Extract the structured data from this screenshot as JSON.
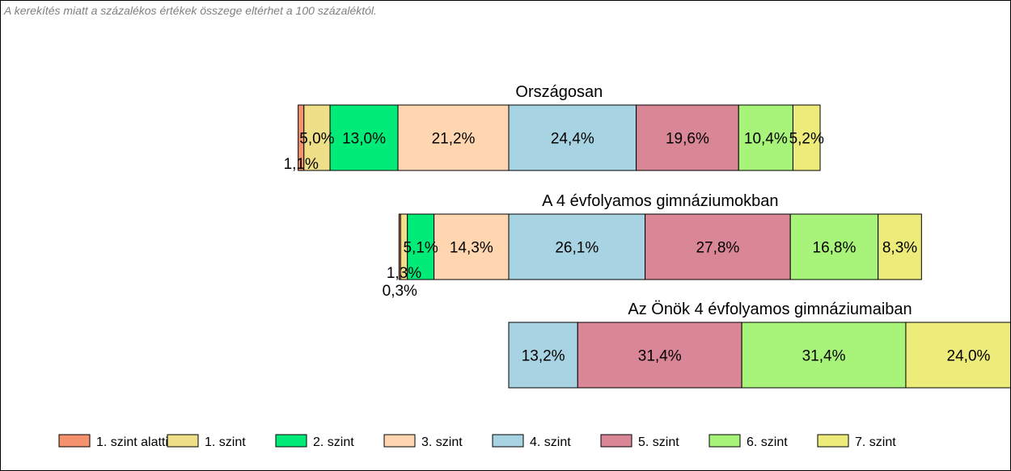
{
  "note": "A kerekítés miatt a  százalékos értékek összege eltérhet a 100 százaléktól.",
  "chart_data": {
    "type": "bar",
    "orientation": "horizontal",
    "stacked": true,
    "xlim": [
      0,
      100
    ],
    "legend": {
      "placement": "bottom"
    },
    "categories": [
      {
        "label": "1. szint alatti",
        "color": "#F4926E"
      },
      {
        "label": "1. szint",
        "color": "#EFDF89"
      },
      {
        "label": "2. szint",
        "color": "#00EB77"
      },
      {
        "label": "3. szint",
        "color": "#FFD6AF"
      },
      {
        "label": "4. szint",
        "color": "#A8D3E3"
      },
      {
        "label": "5. szint",
        "color": "#D98697"
      },
      {
        "label": "6. szint",
        "color": "#A8F47A"
      },
      {
        "label": "7. szint",
        "color": "#EDEC7A"
      }
    ],
    "bars": [
      {
        "title": "Országosan",
        "values": [
          1.1,
          5.0,
          13.0,
          21.2,
          24.4,
          19.6,
          10.4,
          5.2
        ],
        "labels": [
          "1,1%",
          "5,0%",
          "13,0%",
          "21,2%",
          "24,4%",
          "19,6%",
          "10,4%",
          "5,2%"
        ]
      },
      {
        "title": "A 4 évfolyamos gimnáziumokban",
        "values": [
          0.3,
          1.3,
          5.1,
          14.3,
          26.1,
          27.8,
          16.8,
          8.3
        ],
        "labels": [
          "0,3%",
          "1,3%",
          "5,1%",
          "14,3%",
          "26,1%",
          "27,8%",
          "16,8%",
          "8,3%"
        ]
      },
      {
        "title": "Az Önök 4 évfolyamos gimnáziumaiban",
        "values": [
          0,
          0,
          0,
          0,
          13.2,
          31.4,
          31.4,
          24.0
        ],
        "labels": [
          "",
          "",
          "",
          "",
          "13,2%",
          "31,4%",
          "31,4%",
          "24,0%"
        ]
      }
    ]
  }
}
